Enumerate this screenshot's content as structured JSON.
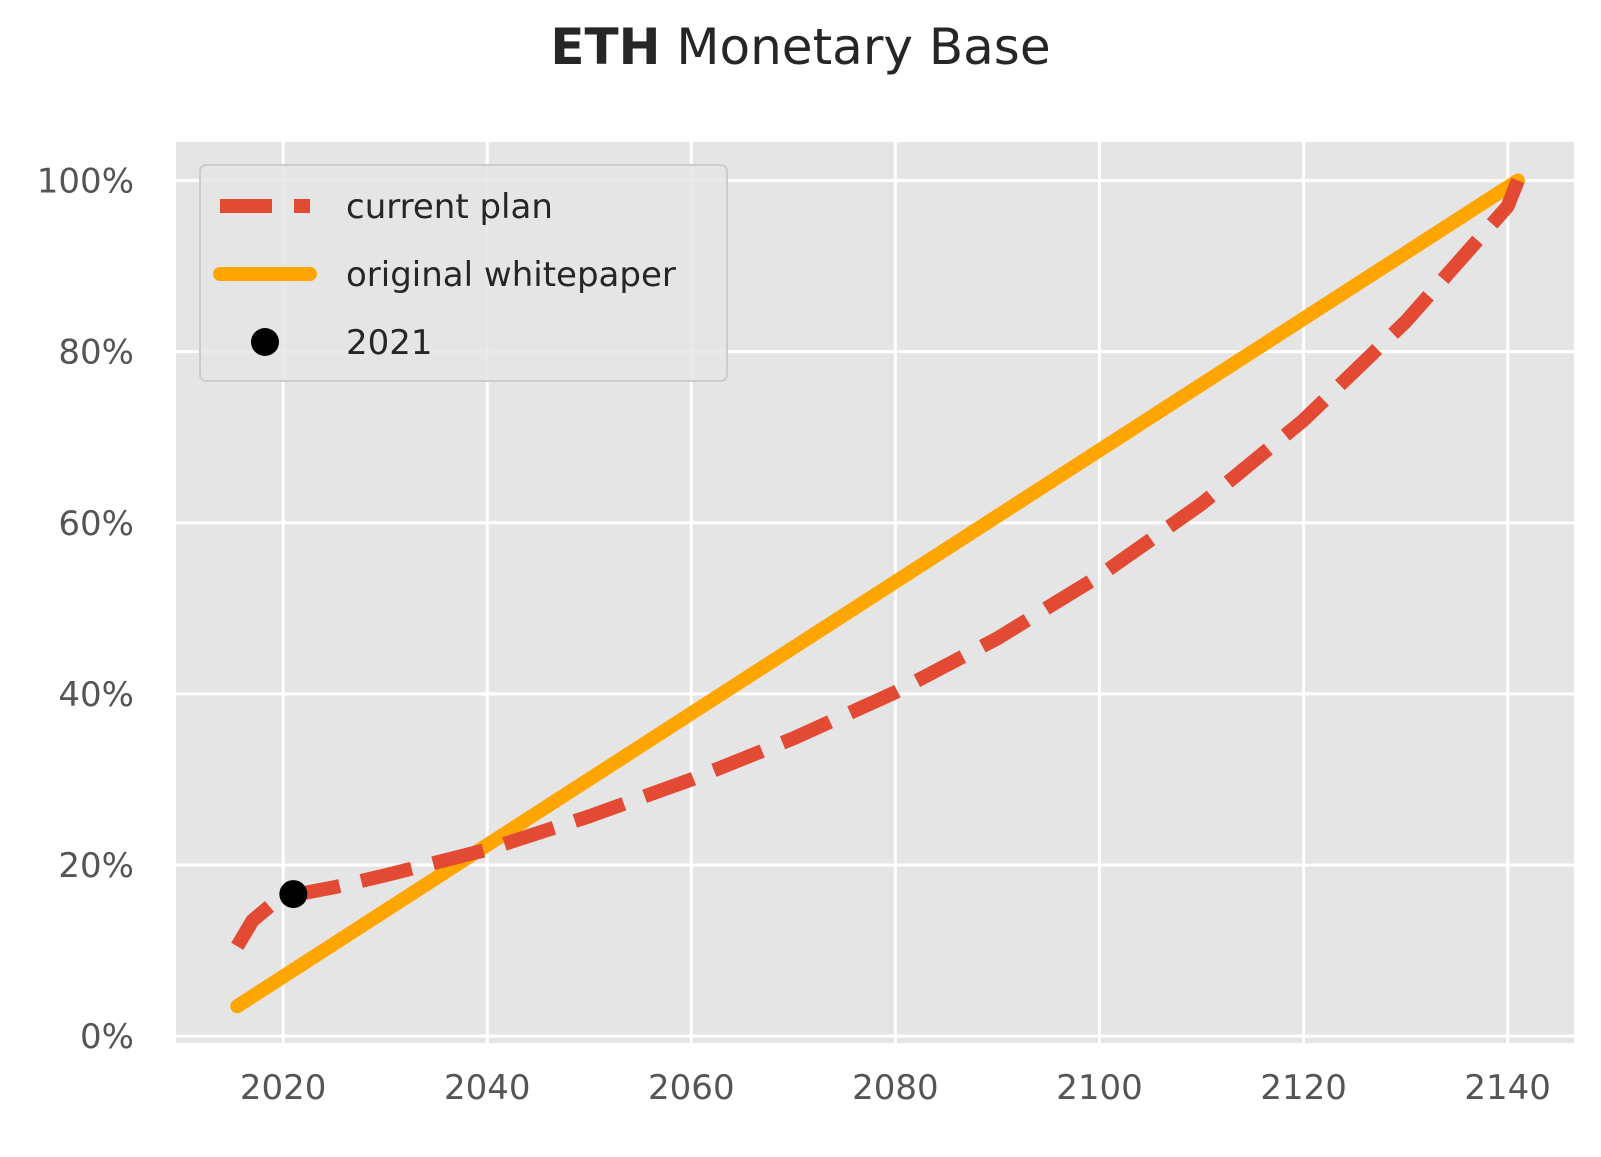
{
  "chart_data": {
    "type": "line",
    "title_bold": "ETH",
    "title_rest": "Monetary Base",
    "xlabel": "",
    "ylabel": "",
    "xlim": [
      2009.5,
      2146.5
    ],
    "ylim": [
      -0.8,
      104.5
    ],
    "x_ticks": [
      2020,
      2040,
      2060,
      2080,
      2100,
      2120,
      2140
    ],
    "y_ticks": [
      0,
      20,
      40,
      60,
      80,
      100
    ],
    "y_tick_labels": [
      "0%",
      "20%",
      "40%",
      "60%",
      "80%",
      "100%"
    ],
    "grid": true,
    "legend_position": "top-left",
    "series": [
      {
        "name": "current plan",
        "color": "#E24A33",
        "style": "dashed",
        "x": [
          2015.5,
          2017,
          2019,
          2021,
          2025,
          2030,
          2040,
          2050,
          2060,
          2070,
          2080,
          2090,
          2100,
          2110,
          2120,
          2130,
          2140,
          2141
        ],
        "y": [
          10.5,
          13.5,
          15.5,
          16.5,
          17.4,
          18.8,
          21.8,
          25.7,
          30,
          34.8,
          40.2,
          46.5,
          53.8,
          62.2,
          72,
          83.5,
          97,
          100
        ]
      },
      {
        "name": "original whitepaper",
        "color": "#FFA500",
        "style": "solid",
        "x": [
          2015.5,
          2141
        ],
        "y": [
          3.5,
          100
        ]
      }
    ],
    "points": [
      {
        "name": "2021",
        "color": "#000000",
        "x": 2021,
        "y": 16.6
      }
    ]
  }
}
